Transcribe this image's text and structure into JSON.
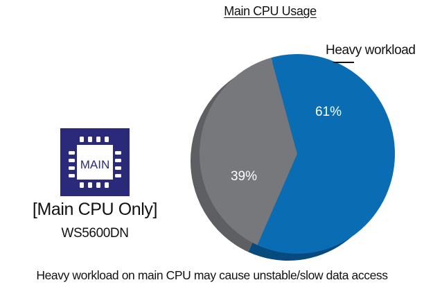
{
  "chart_data": {
    "type": "pie",
    "title": "Main CPU Usage",
    "slices": [
      {
        "label": "61%",
        "value": 61,
        "color": "#0a6db3",
        "side_color": "#074a7e"
      },
      {
        "label": "39%",
        "value": 39,
        "color": "#77787b",
        "side_color": "#5e5f62"
      }
    ],
    "annotation": "Heavy workload"
  },
  "left_panel": {
    "chip_label": "MAIN",
    "chip_color": "#2b2a7a",
    "heading": "[Main CPU Only]",
    "model": "WS5600DN"
  },
  "caption": "Heavy workload on main CPU may cause unstable/slow data access"
}
